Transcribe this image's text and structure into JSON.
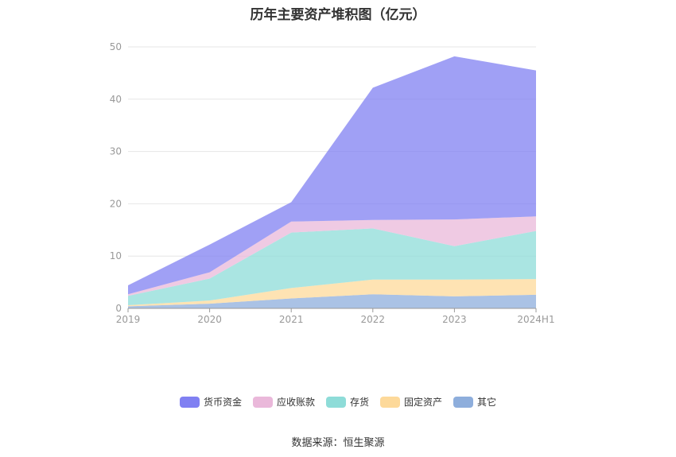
{
  "title": "历年主要资产堆积图（亿元）",
  "source": "数据来源：恒生聚源",
  "chart_data": {
    "type": "area",
    "stacked": true,
    "categories": [
      "2019",
      "2020",
      "2021",
      "2022",
      "2023",
      "2024H1"
    ],
    "ylim": [
      0,
      50
    ],
    "yticks": [
      0,
      10,
      20,
      30,
      40,
      50
    ],
    "grid": true,
    "legend_position": "bottom",
    "series": [
      {
        "name": "其它",
        "color": "#8eaedc",
        "values": [
          0.4,
          0.9,
          1.9,
          2.7,
          2.3,
          2.6
        ]
      },
      {
        "name": "固定资产",
        "color": "#fdd99a",
        "values": [
          0.2,
          0.6,
          2.0,
          2.8,
          3.2,
          3.0
        ]
      },
      {
        "name": "存货",
        "color": "#8edcd8",
        "values": [
          1.8,
          4.2,
          10.6,
          9.8,
          6.4,
          9.2
        ]
      },
      {
        "name": "应收账款",
        "color": "#eab8da",
        "values": [
          0.3,
          1.2,
          2.1,
          1.6,
          5.1,
          2.8
        ]
      },
      {
        "name": "货币资金",
        "color": "#8080f2",
        "values": [
          1.7,
          5.3,
          3.7,
          25.3,
          31.2,
          27.9
        ]
      }
    ]
  }
}
